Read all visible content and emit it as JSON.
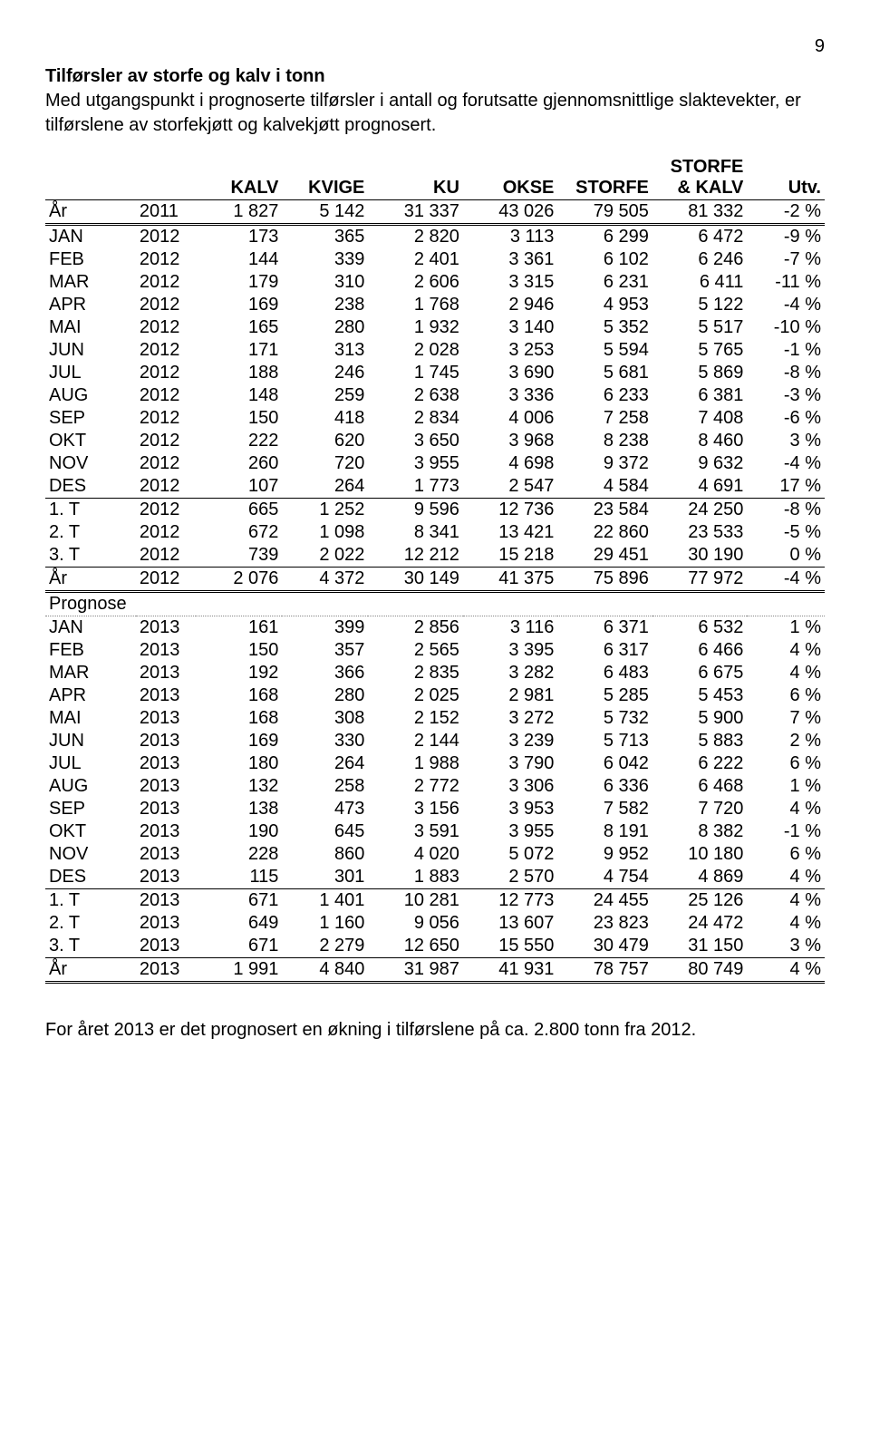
{
  "pageNumber": "9",
  "title": "Tilførsler av storfe og kalv i tonn",
  "description": "Med utgangspunkt i prognoserte tilførsler i antall og forutsatte gjennomsnittlige slaktevekter, er tilførslene av storfekjøtt og kalvekjøtt prognosert.",
  "columns": [
    "",
    "",
    "KALV",
    "KVIGE",
    "KU",
    "OKSE",
    "STORFE",
    "STORFE & KALV",
    "Utv."
  ],
  "sections": [
    {
      "rows": [
        [
          "År",
          "2011",
          "1 827",
          "5 142",
          "31 337",
          "43 026",
          "79 505",
          "81 332",
          "-2 %"
        ]
      ],
      "topBorder": "single",
      "bottomBorder": "double"
    },
    {
      "rows": [
        [
          "JAN",
          "2012",
          "173",
          "365",
          "2 820",
          "3 113",
          "6 299",
          "6 472",
          "-9 %"
        ],
        [
          "FEB",
          "2012",
          "144",
          "339",
          "2 401",
          "3 361",
          "6 102",
          "6 246",
          "-7 %"
        ],
        [
          "MAR",
          "2012",
          "179",
          "310",
          "2 606",
          "3 315",
          "6 231",
          "6 411",
          "-11 %"
        ],
        [
          "APR",
          "2012",
          "169",
          "238",
          "1 768",
          "2 946",
          "4 953",
          "5 122",
          "-4 %"
        ],
        [
          "MAI",
          "2012",
          "165",
          "280",
          "1 932",
          "3 140",
          "5 352",
          "5 517",
          "-10 %"
        ],
        [
          "JUN",
          "2012",
          "171",
          "313",
          "2 028",
          "3 253",
          "5 594",
          "5 765",
          "-1 %"
        ],
        [
          "JUL",
          "2012",
          "188",
          "246",
          "1 745",
          "3 690",
          "5 681",
          "5 869",
          "-8 %"
        ],
        [
          "AUG",
          "2012",
          "148",
          "259",
          "2 638",
          "3 336",
          "6 233",
          "6 381",
          "-3 %"
        ],
        [
          "SEP",
          "2012",
          "150",
          "418",
          "2 834",
          "4 006",
          "7 258",
          "7 408",
          "-6 %"
        ],
        [
          "OKT",
          "2012",
          "222",
          "620",
          "3 650",
          "3 968",
          "8 238",
          "8 460",
          "3 %"
        ],
        [
          "NOV",
          "2012",
          "260",
          "720",
          "3 955",
          "4 698",
          "9 372",
          "9 632",
          "-4 %"
        ],
        [
          "DES",
          "2012",
          "107",
          "264",
          "1 773",
          "2 547",
          "4 584",
          "4 691",
          "17 %"
        ]
      ],
      "bottomBorder": "single"
    },
    {
      "rows": [
        [
          "1. T",
          "2012",
          "665",
          "1 252",
          "9 596",
          "12 736",
          "23 584",
          "24 250",
          "-8 %"
        ],
        [
          "2. T",
          "2012",
          "672",
          "1 098",
          "8 341",
          "13 421",
          "22 860",
          "23 533",
          "-5 %"
        ],
        [
          "3. T",
          "2012",
          "739",
          "2 022",
          "12 212",
          "15 218",
          "29 451",
          "30 190",
          "0 %"
        ]
      ],
      "bottomBorder": "single"
    },
    {
      "rows": [
        [
          "År",
          "2012",
          "2 076",
          "4 372",
          "30 149",
          "41 375",
          "75 896",
          "77 972",
          "-4 %"
        ]
      ],
      "bottomBorder": "double"
    },
    {
      "rows": [
        [
          "Prognose",
          "",
          "",
          "",
          "",
          "",
          "",
          "",
          ""
        ]
      ],
      "bottomBorder": "dotted"
    },
    {
      "rows": [
        [
          "JAN",
          "2013",
          "161",
          "399",
          "2 856",
          "3 116",
          "6 371",
          "6 532",
          "1 %"
        ],
        [
          "FEB",
          "2013",
          "150",
          "357",
          "2 565",
          "3 395",
          "6 317",
          "6 466",
          "4 %"
        ],
        [
          "MAR",
          "2013",
          "192",
          "366",
          "2 835",
          "3 282",
          "6 483",
          "6 675",
          "4 %"
        ],
        [
          "APR",
          "2013",
          "168",
          "280",
          "2 025",
          "2 981",
          "5 285",
          "5 453",
          "6 %"
        ],
        [
          "MAI",
          "2013",
          "168",
          "308",
          "2 152",
          "3 272",
          "5 732",
          "5 900",
          "7 %"
        ],
        [
          "JUN",
          "2013",
          "169",
          "330",
          "2 144",
          "3 239",
          "5 713",
          "5 883",
          "2 %"
        ],
        [
          "JUL",
          "2013",
          "180",
          "264",
          "1 988",
          "3 790",
          "6 042",
          "6 222",
          "6 %"
        ],
        [
          "AUG",
          "2013",
          "132",
          "258",
          "2 772",
          "3 306",
          "6 336",
          "6 468",
          "1 %"
        ],
        [
          "SEP",
          "2013",
          "138",
          "473",
          "3 156",
          "3 953",
          "7 582",
          "7 720",
          "4 %"
        ],
        [
          "OKT",
          "2013",
          "190",
          "645",
          "3 591",
          "3 955",
          "8 191",
          "8 382",
          "-1 %"
        ],
        [
          "NOV",
          "2013",
          "228",
          "860",
          "4 020",
          "5 072",
          "9 952",
          "10 180",
          "6 %"
        ],
        [
          "DES",
          "2013",
          "115",
          "301",
          "1 883",
          "2 570",
          "4 754",
          "4 869",
          "4 %"
        ]
      ],
      "bottomBorder": "single"
    },
    {
      "rows": [
        [
          "1. T",
          "2013",
          "671",
          "1 401",
          "10 281",
          "12 773",
          "24 455",
          "25 126",
          "4 %"
        ],
        [
          "2. T",
          "2013",
          "649",
          "1 160",
          "9 056",
          "13 607",
          "23 823",
          "24 472",
          "4 %"
        ],
        [
          "3. T",
          "2013",
          "671",
          "2 279",
          "12 650",
          "15 550",
          "30 479",
          "31 150",
          "3 %"
        ]
      ],
      "bottomBorder": "single"
    },
    {
      "rows": [
        [
          "År",
          "2013",
          "1 991",
          "4 840",
          "31 987",
          "41 931",
          "78 757",
          "80 749",
          "4 %"
        ]
      ],
      "bottomBorder": "double"
    }
  ],
  "footer": "For året 2013 er det prognosert en økning i tilførslene på ca. 2.800 tonn fra 2012."
}
